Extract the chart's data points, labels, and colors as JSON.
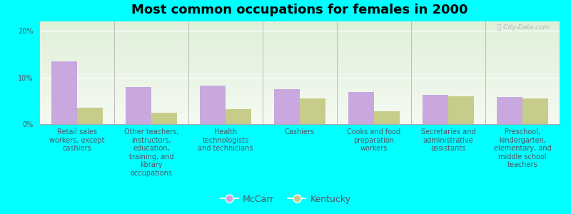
{
  "title": "Most common occupations for females in 2000",
  "categories": [
    "Retail sales\nworkers, except\ncashiers",
    "Other teachers,\ninstructors,\neducation,\ntraining, and\nlibrary\noccupations",
    "Health\ntechnologists\nand technicians",
    "Cashiers",
    "Cooks and food\npreparation\nworkers",
    "Secretaries and\nadministrative\nassistants",
    "Preschool,\nkindergarten,\nelementary, and\nmiddle school\nteachers"
  ],
  "mccarr_values": [
    13.5,
    8.0,
    8.2,
    7.5,
    6.8,
    6.2,
    5.8
  ],
  "kentucky_values": [
    3.5,
    2.5,
    3.2,
    5.5,
    2.8,
    6.0,
    5.5
  ],
  "mccarr_color": "#c9a8e0",
  "kentucky_color": "#c8cc8a",
  "background_color": "#00ffff",
  "ylim": [
    0,
    22
  ],
  "yticks": [
    0,
    10,
    20
  ],
  "ytick_labels": [
    "0%",
    "10%",
    "20%"
  ],
  "bar_width": 0.35,
  "legend_labels": [
    "McCarr",
    "Kentucky"
  ],
  "watermark": "ⓘ City-Data.com",
  "title_fontsize": 13,
  "tick_fontsize": 7,
  "legend_fontsize": 9,
  "label_color": "#555566"
}
